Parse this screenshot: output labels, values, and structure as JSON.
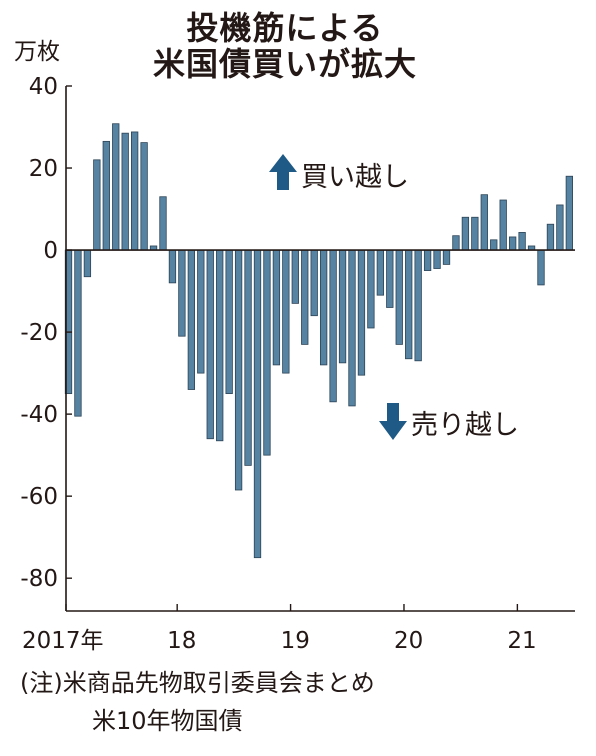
{
  "title_lines": [
    "投機筋による",
    "米国債買いが拡大"
  ],
  "unit": "万枚",
  "annotations": {
    "buy": "買い越し",
    "sell": "売り越し"
  },
  "notes": [
    "(注)米商品先物取引委員会まとめ",
    "米10年物国債"
  ],
  "colors": {
    "bar": "#5783a2",
    "bar_stroke": "#2b4356",
    "arrow": "#1f5a86",
    "axis": "#231815"
  },
  "chart_data": {
    "type": "bar",
    "title": "投機筋による米国債買いが拡大",
    "ylabel": "万枚",
    "ylim": [
      -88,
      40
    ],
    "yticks": [
      40,
      20,
      0,
      -20,
      -40,
      -60,
      -80
    ],
    "ytick_labels": [
      "40",
      "20",
      "0",
      "-20",
      "-40",
      "-60",
      "-80"
    ],
    "xticks": [
      {
        "label": "2017年",
        "month_index": 0
      },
      {
        "label": "18",
        "month_index": 12
      },
      {
        "label": "19",
        "month_index": 24
      },
      {
        "label": "20",
        "month_index": 36
      },
      {
        "label": "21",
        "month_index": 48
      }
    ],
    "start": "2017-01",
    "frequency": "monthly",
    "values": [
      -35,
      -40.5,
      -6.5,
      22,
      26.5,
      30.8,
      28.5,
      28.8,
      26.2,
      1,
      13,
      -8,
      -21,
      -34,
      -30,
      -46,
      -46.5,
      -35,
      -58.5,
      -52.5,
      -75,
      -50,
      -28,
      -30,
      -13,
      -23,
      -16,
      -28,
      -37,
      -27.5,
      -38,
      -30.5,
      -19,
      -11,
      -14,
      -23,
      -26.5,
      -27,
      -5,
      -4.5,
      -3.5,
      3.5,
      8,
      8,
      13.5,
      2.5,
      12.2,
      3.2,
      4.3,
      1,
      -8.5,
      6.3,
      11,
      18
    ]
  }
}
